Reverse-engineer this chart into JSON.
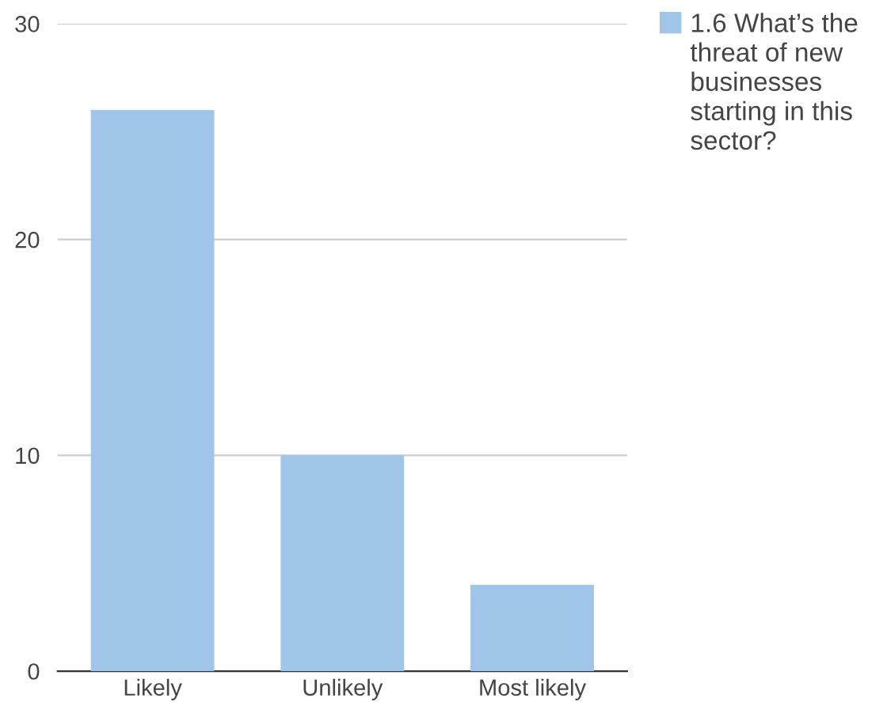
{
  "chart_data": {
    "type": "bar",
    "categories": [
      "Likely",
      "Unlikely",
      "Most likely"
    ],
    "series": [
      {
        "name": "1.6 What’s the threat of new businesses starting in this sector?",
        "color": "#9fc5e8",
        "values": [
          26,
          10,
          4
        ]
      }
    ],
    "ylim": [
      0,
      30
    ],
    "yticks": [
      0,
      10,
      20,
      30
    ],
    "grid": "y",
    "legend": "top right"
  }
}
